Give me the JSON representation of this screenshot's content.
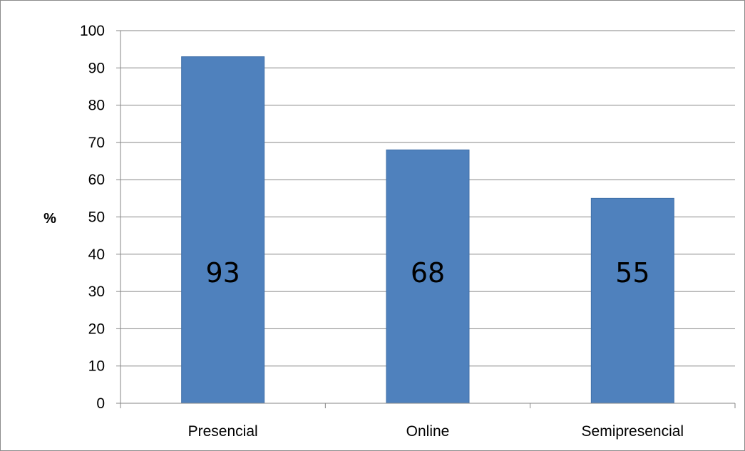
{
  "chart_data": {
    "type": "bar",
    "categories": [
      "Presencial",
      "Online",
      "Semipresencial"
    ],
    "values": [
      93,
      68,
      55
    ],
    "data_labels": [
      "93",
      "68",
      "55"
    ],
    "title": "",
    "xlabel": "",
    "ylabel": "%",
    "ylim": [
      0,
      100
    ],
    "yticks": [
      0,
      10,
      20,
      30,
      40,
      50,
      60,
      70,
      80,
      90,
      100
    ],
    "grid": true,
    "legend": "none",
    "bar_color": "#4f81bd",
    "bar_edge_color": "#3f6fa8",
    "grid_color": "#868686"
  }
}
